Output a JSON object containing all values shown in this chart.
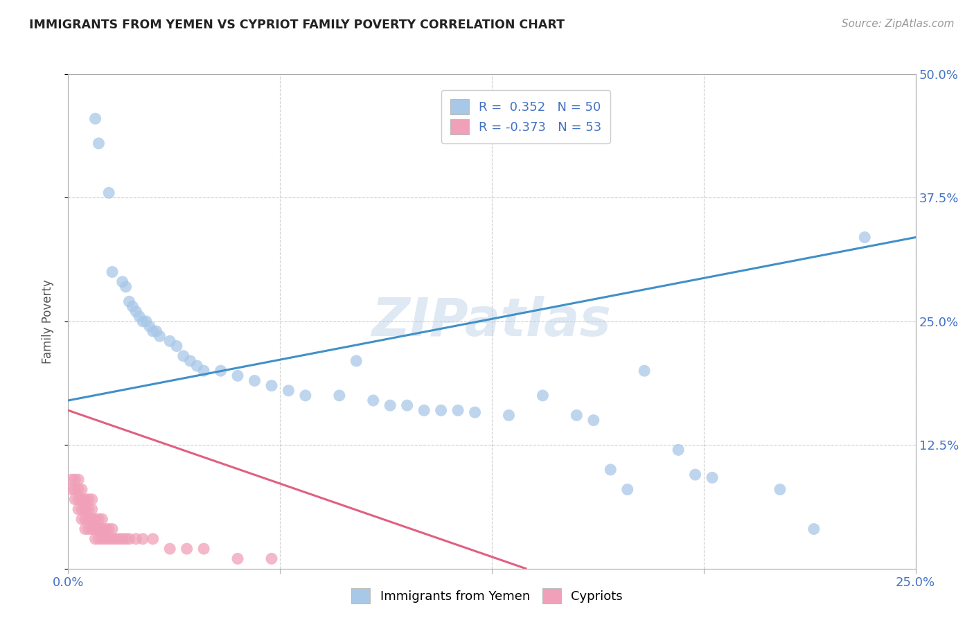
{
  "title": "IMMIGRANTS FROM YEMEN VS CYPRIOT FAMILY POVERTY CORRELATION CHART",
  "source": "Source: ZipAtlas.com",
  "ylabel_label": "Family Poverty",
  "legend_label_1": "Immigrants from Yemen",
  "legend_label_2": "Cypriots",
  "R1": 0.352,
  "N1": 50,
  "R2": -0.373,
  "N2": 53,
  "color_blue": "#A8C8E8",
  "color_pink": "#F0A0B8",
  "color_blue_line": "#4090C8",
  "color_pink_line": "#E06080",
  "color_text_blue": "#4472C4",
  "watermark": "ZIPatlas",
  "xlim": [
    0.0,
    0.25
  ],
  "ylim": [
    0.0,
    0.5
  ],
  "blue_x": [
    0.008,
    0.009,
    0.012,
    0.013,
    0.016,
    0.017,
    0.018,
    0.019,
    0.02,
    0.021,
    0.022,
    0.023,
    0.024,
    0.025,
    0.026,
    0.027,
    0.03,
    0.032,
    0.034,
    0.036,
    0.038,
    0.04,
    0.045,
    0.05,
    0.055,
    0.06,
    0.065,
    0.07,
    0.08,
    0.085,
    0.09,
    0.095,
    0.1,
    0.105,
    0.11,
    0.115,
    0.12,
    0.13,
    0.14,
    0.15,
    0.155,
    0.16,
    0.165,
    0.17,
    0.18,
    0.185,
    0.19,
    0.21,
    0.22,
    0.235
  ],
  "blue_y": [
    0.455,
    0.43,
    0.38,
    0.3,
    0.29,
    0.285,
    0.27,
    0.265,
    0.26,
    0.255,
    0.25,
    0.25,
    0.245,
    0.24,
    0.24,
    0.235,
    0.23,
    0.225,
    0.215,
    0.21,
    0.205,
    0.2,
    0.2,
    0.195,
    0.19,
    0.185,
    0.18,
    0.175,
    0.175,
    0.21,
    0.17,
    0.165,
    0.165,
    0.16,
    0.16,
    0.16,
    0.158,
    0.155,
    0.175,
    0.155,
    0.15,
    0.1,
    0.08,
    0.2,
    0.12,
    0.095,
    0.092,
    0.08,
    0.04,
    0.335
  ],
  "pink_x": [
    0.001,
    0.001,
    0.002,
    0.002,
    0.002,
    0.003,
    0.003,
    0.003,
    0.003,
    0.004,
    0.004,
    0.004,
    0.004,
    0.005,
    0.005,
    0.005,
    0.005,
    0.006,
    0.006,
    0.006,
    0.006,
    0.007,
    0.007,
    0.007,
    0.007,
    0.008,
    0.008,
    0.008,
    0.009,
    0.009,
    0.009,
    0.01,
    0.01,
    0.01,
    0.011,
    0.011,
    0.012,
    0.012,
    0.013,
    0.013,
    0.014,
    0.015,
    0.016,
    0.017,
    0.018,
    0.02,
    0.022,
    0.025,
    0.03,
    0.035,
    0.04,
    0.05,
    0.06
  ],
  "pink_y": [
    0.08,
    0.09,
    0.07,
    0.08,
    0.09,
    0.06,
    0.07,
    0.08,
    0.09,
    0.05,
    0.06,
    0.07,
    0.08,
    0.04,
    0.05,
    0.06,
    0.07,
    0.04,
    0.05,
    0.06,
    0.07,
    0.04,
    0.05,
    0.06,
    0.07,
    0.03,
    0.04,
    0.05,
    0.03,
    0.04,
    0.05,
    0.03,
    0.04,
    0.05,
    0.03,
    0.04,
    0.03,
    0.04,
    0.03,
    0.04,
    0.03,
    0.03,
    0.03,
    0.03,
    0.03,
    0.03,
    0.03,
    0.03,
    0.02,
    0.02,
    0.02,
    0.01,
    0.01
  ],
  "blue_trend_x": [
    0.0,
    0.25
  ],
  "blue_trend_y": [
    0.17,
    0.335
  ],
  "pink_trend_x": [
    0.0,
    0.135
  ],
  "pink_trend_y": [
    0.16,
    0.0
  ]
}
